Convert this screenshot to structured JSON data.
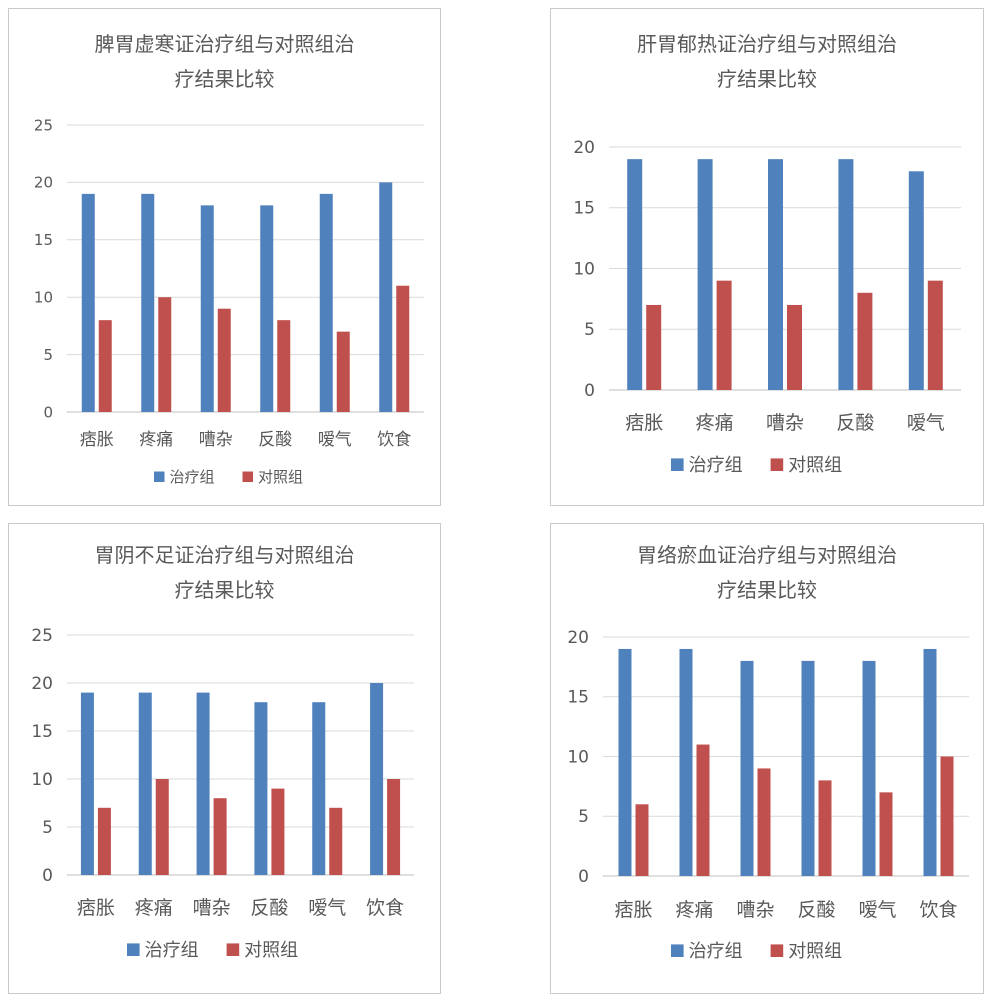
{
  "colors": {
    "treatment": "#4f81bd",
    "control": "#c0504d"
  },
  "chart_data": [
    {
      "type": "bar",
      "title_lines": [
        "脾胃虚寒证治疗组与对照组治",
        "疗结果比较"
      ],
      "categories": [
        "痞胀",
        "疼痛",
        "嘈杂",
        "反酸",
        "嗳气",
        "饮食"
      ],
      "ylim": [
        0,
        25
      ],
      "yticks": [
        "0",
        "5",
        "10",
        "15",
        "20",
        "25"
      ],
      "grid": true,
      "legend_position": "bottom",
      "series": [
        {
          "name": "治疗组",
          "values": [
            19,
            19,
            18,
            18,
            19,
            20
          ]
        },
        {
          "name": "对照组",
          "values": [
            8,
            10,
            9,
            8,
            7,
            11
          ]
        }
      ]
    },
    {
      "type": "bar",
      "title_lines": [
        "肝胃郁热证治疗组与对照组治",
        "疗结果比较"
      ],
      "categories": [
        "痞胀",
        "疼痛",
        "嘈杂",
        "反酸",
        "嗳气"
      ],
      "ylim": [
        0,
        20
      ],
      "yticks": [
        "0",
        "5",
        "10",
        "15",
        "20"
      ],
      "grid": true,
      "legend_position": "bottom",
      "series": [
        {
          "name": "治疗组",
          "values": [
            19,
            19,
            19,
            19,
            18
          ]
        },
        {
          "name": "对照组",
          "values": [
            7,
            9,
            7,
            8,
            9
          ]
        }
      ]
    },
    {
      "type": "bar",
      "title_lines": [
        "胃阴不足证治疗组与对照组治",
        "疗结果比较"
      ],
      "categories": [
        "痞胀",
        "疼痛",
        "嘈杂",
        "反酸",
        "嗳气",
        "饮食"
      ],
      "ylim": [
        0,
        25
      ],
      "yticks": [
        "0",
        "5",
        "10",
        "15",
        "20",
        "25"
      ],
      "grid": true,
      "legend_position": "bottom",
      "series": [
        {
          "name": "治疗组",
          "values": [
            19,
            19,
            19,
            18,
            18,
            20
          ]
        },
        {
          "name": "对照组",
          "values": [
            7,
            10,
            8,
            9,
            7,
            10
          ]
        }
      ]
    },
    {
      "type": "bar",
      "title_lines": [
        "胃络瘀血证治疗组与对照组治",
        "疗结果比较"
      ],
      "categories": [
        "痞胀",
        "疼痛",
        "嘈杂",
        "反酸",
        "嗳气",
        "饮食"
      ],
      "ylim": [
        0,
        20
      ],
      "yticks": [
        "0",
        "5",
        "10",
        "15",
        "20"
      ],
      "grid": true,
      "legend_position": "bottom",
      "series": [
        {
          "name": "治疗组",
          "values": [
            19,
            19,
            18,
            18,
            18,
            19
          ]
        },
        {
          "name": "对照组",
          "values": [
            6,
            11,
            9,
            8,
            7,
            10
          ]
        }
      ]
    }
  ]
}
